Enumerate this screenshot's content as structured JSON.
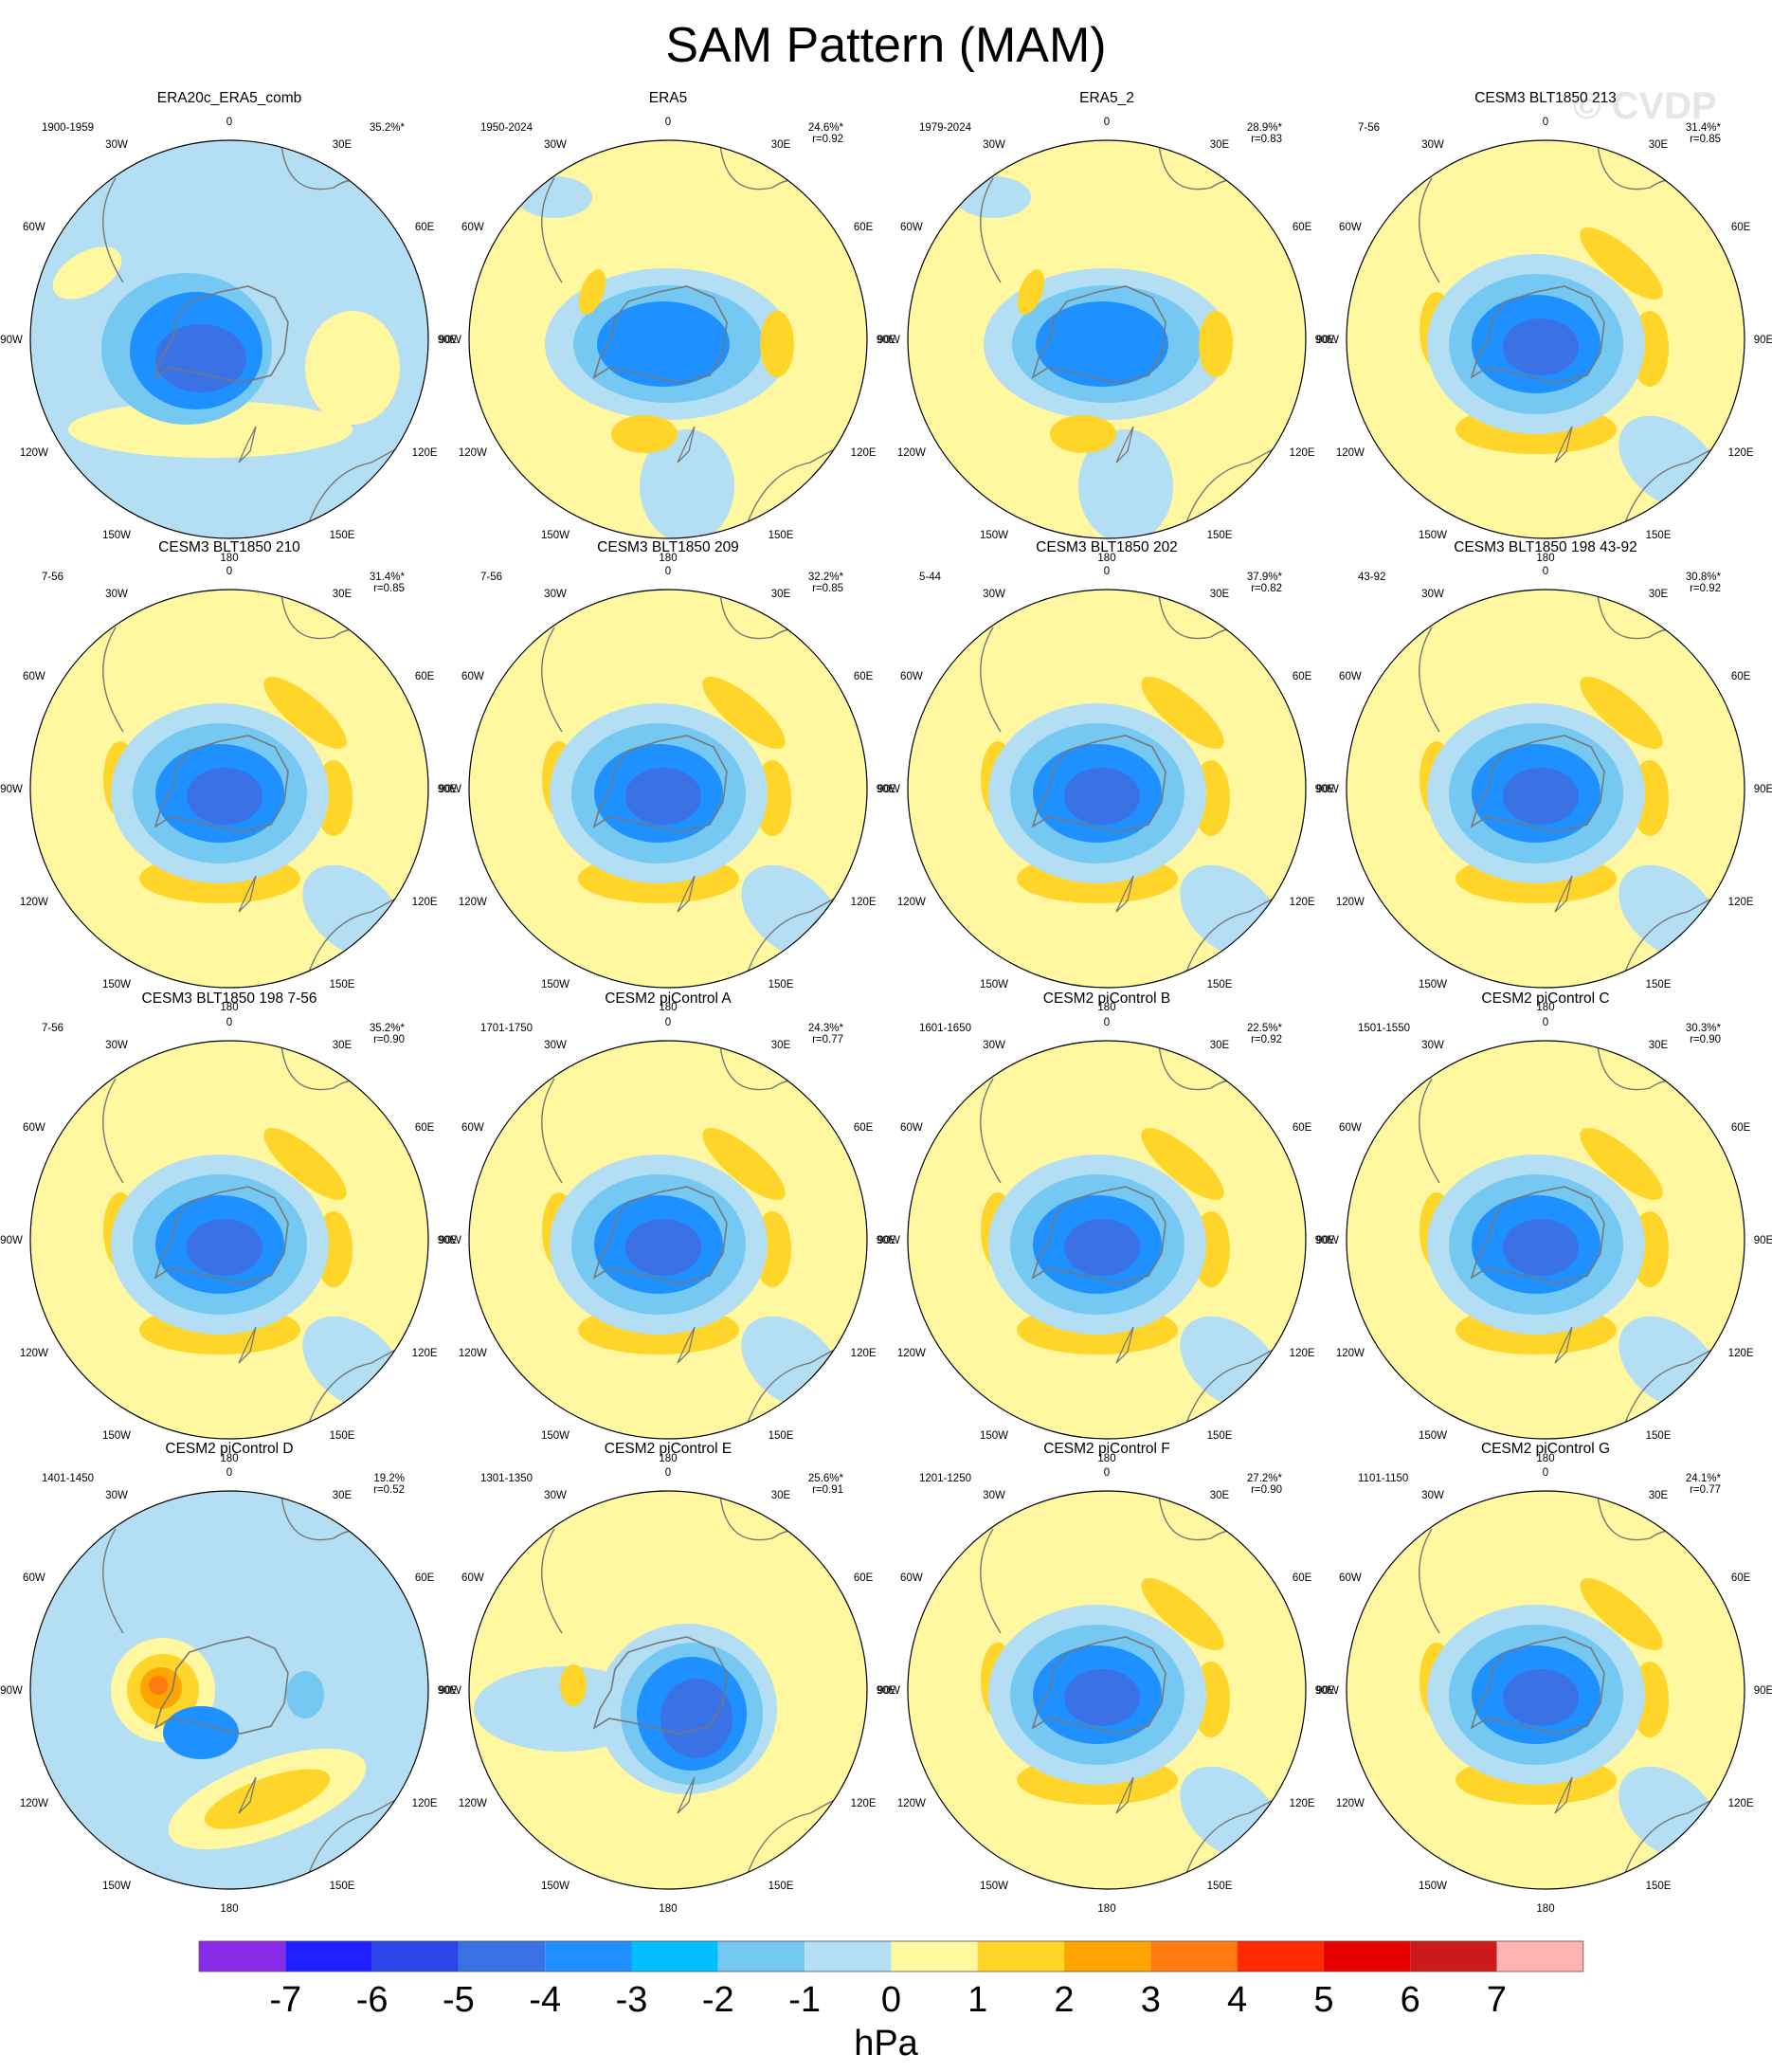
{
  "title": "SAM Pattern (MAM)",
  "watermark": "© CVDP",
  "longitude_labels": [
    "0",
    "30E",
    "60E",
    "90E",
    "120E",
    "150E",
    "180",
    "150W",
    "120W",
    "90W",
    "60W",
    "30W"
  ],
  "panels": [
    {
      "name": "ERA20c_ERA5_comb",
      "period": "1900-1959",
      "pct": "35.2%*",
      "r": "",
      "pattern": "era20c"
    },
    {
      "name": "ERA5",
      "period": "1950-2024",
      "pct": "24.6%*",
      "r": "r=0.92",
      "pattern": "era5"
    },
    {
      "name": "ERA5_2",
      "period": "1979-2024",
      "pct": "28.9%*",
      "r": "r=0.83",
      "pattern": "era5"
    },
    {
      "name": "CESM3 BLT1850 213",
      "period": "7-56",
      "pct": "31.4%*",
      "r": "r=0.85",
      "pattern": "ring"
    },
    {
      "name": "CESM3 BLT1850 210",
      "period": "7-56",
      "pct": "31.4%*",
      "r": "r=0.85",
      "pattern": "ring"
    },
    {
      "name": "CESM3 BLT1850 209",
      "period": "7-56",
      "pct": "32.2%*",
      "r": "r=0.85",
      "pattern": "ring"
    },
    {
      "name": "CESM3 BLT1850 202",
      "period": "5-44",
      "pct": "37.9%*",
      "r": "r=0.82",
      "pattern": "ring"
    },
    {
      "name": "CESM3 BLT1850 198 43-92",
      "period": "43-92",
      "pct": "30.8%*",
      "r": "r=0.92",
      "pattern": "ring"
    },
    {
      "name": "CESM3 BLT1850 198 7-56",
      "period": "7-56",
      "pct": "35.2%*",
      "r": "r=0.90",
      "pattern": "ring"
    },
    {
      "name": "CESM2 piControl A",
      "period": "1701-1750",
      "pct": "24.3%*",
      "r": "r=0.77",
      "pattern": "ring"
    },
    {
      "name": "CESM2 piControl B",
      "period": "1601-1650",
      "pct": "22.5%*",
      "r": "r=0.92",
      "pattern": "ring"
    },
    {
      "name": "CESM2 piControl C",
      "period": "1501-1550",
      "pct": "30.3%*",
      "r": "r=0.90",
      "pattern": "ring"
    },
    {
      "name": "CESM2 piControl D",
      "period": "1401-1450",
      "pct": "19.2%",
      "r": "r=0.52",
      "pattern": "pcD"
    },
    {
      "name": "CESM2 piControl E",
      "period": "1301-1350",
      "pct": "25.6%*",
      "r": "r=0.91",
      "pattern": "pcE"
    },
    {
      "name": "CESM2 piControl F",
      "period": "1201-1250",
      "pct": "27.2%*",
      "r": "r=0.90",
      "pattern": "ring"
    },
    {
      "name": "CESM2 piControl G",
      "period": "1101-1150",
      "pct": "24.1%*",
      "r": "r=0.77",
      "pattern": "ring"
    }
  ],
  "colorbar": {
    "units": "hPa",
    "labels": [
      "-7",
      "-6",
      "-5",
      "-4",
      "-3",
      "-2",
      "-1",
      "0",
      "1",
      "2",
      "3",
      "4",
      "5",
      "6",
      "7"
    ],
    "colors": [
      "#8a2be8",
      "#1f1fff",
      "#2b46e8",
      "#3a72e6",
      "#1e90ff",
      "#00bfff",
      "#74c8f2",
      "#b4def3",
      "#fff8a0",
      "#ffd52a",
      "#ffa500",
      "#ff7a10",
      "#ff2a00",
      "#e60000",
      "#cc1a1a",
      "#ffb3b3"
    ]
  },
  "colors": {
    "neg3": "#3a72e6",
    "neg2": "#1e90ff",
    "neg1": "#74c8f2",
    "neg0": "#b4def3",
    "pos0": "#fff8a0",
    "pos1": "#ffd52a",
    "pos2": "#ffa500",
    "pos3": "#ff7a10",
    "coast": "#777777",
    "border": "#000000"
  }
}
